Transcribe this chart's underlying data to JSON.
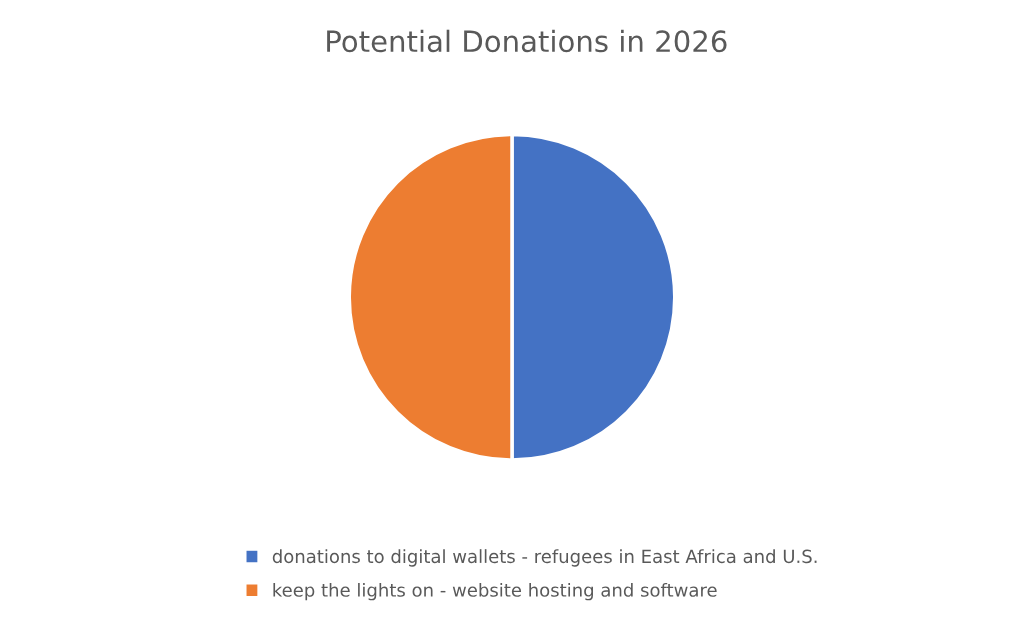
{
  "chart_data": {
    "type": "pie",
    "title": "Potential Donations in 2026",
    "categories": [
      "donations to digital wallets - refugees in East Africa and U.S.",
      "keep the lights on - website hosting and software"
    ],
    "values": [
      50,
      50
    ],
    "colors": [
      "#4472c4",
      "#ed7d31"
    ],
    "legend": "bottom"
  }
}
